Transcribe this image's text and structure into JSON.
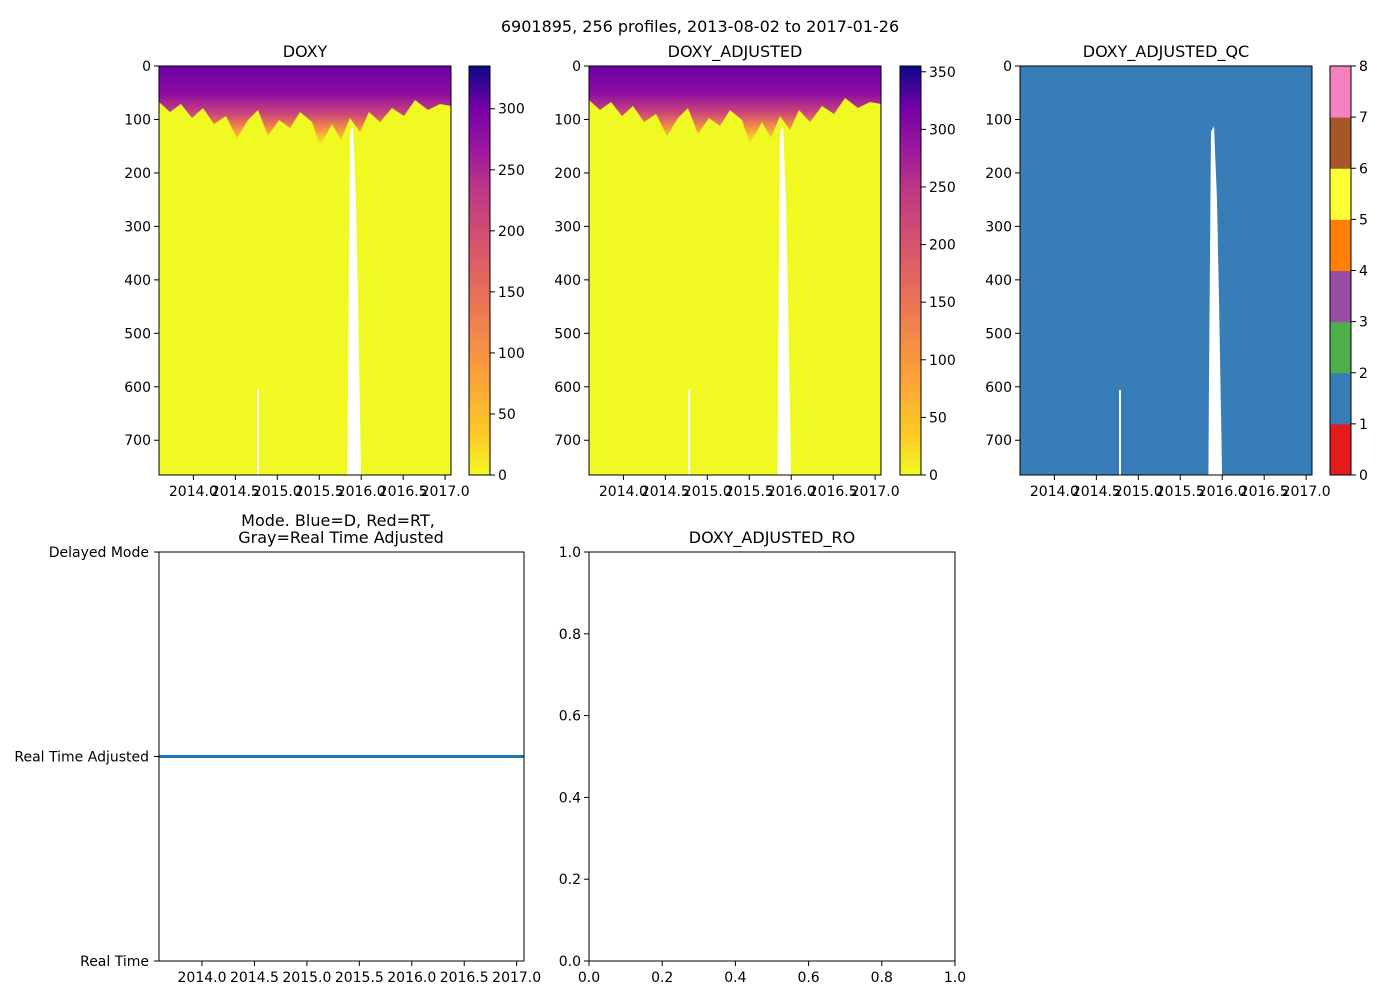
{
  "suptitle": "6901895, 256 profiles, 2013-08-02 to 2017-01-26",
  "colors": {
    "qc_blue": "#377eb8",
    "mode_line": "#1f77b4",
    "qc_palette": [
      "#e41a1c",
      "#377eb8",
      "#4daf4a",
      "#984ea3",
      "#ff7f00",
      "#ffff33",
      "#a65628",
      "#f781bf",
      "#999999"
    ]
  },
  "chart_data": [
    {
      "id": "doxy",
      "type": "heatmap",
      "title": "DOXY",
      "x_ticks": [
        "2014.0",
        "2014.5",
        "2015.0",
        "2015.5",
        "2016.0",
        "2016.5",
        "2017.0"
      ],
      "x_tick_values": [
        2014.0,
        2014.5,
        2015.0,
        2015.5,
        2016.0,
        2016.5,
        2017.0
      ],
      "xlim": [
        2013.59,
        2017.07
      ],
      "y_ticks": [
        "0",
        "100",
        "200",
        "300",
        "400",
        "500",
        "600",
        "700"
      ],
      "y_tick_values": [
        0,
        100,
        200,
        300,
        400,
        500,
        600,
        700
      ],
      "ylim": [
        765,
        0
      ],
      "colorbar": {
        "cmap": "plasma_r",
        "range": [
          0,
          335
        ],
        "ticks": [
          "0",
          "50",
          "100",
          "150",
          "200",
          "250",
          "300"
        ],
        "tick_values": [
          0,
          50,
          100,
          150,
          200,
          250,
          300
        ]
      },
      "notes": "Oxygen high (purple) in upper ~100 dbar, near-zero (yellow) below; profiles end ~715 dbar; data gap around 2016.0"
    },
    {
      "id": "doxy_adj",
      "type": "heatmap",
      "title": "DOXY_ADJUSTED",
      "x_ticks": [
        "2014.0",
        "2014.5",
        "2015.0",
        "2015.5",
        "2016.0",
        "2016.5",
        "2017.0"
      ],
      "x_tick_values": [
        2014.0,
        2014.5,
        2015.0,
        2015.5,
        2016.0,
        2016.5,
        2017.0
      ],
      "xlim": [
        2013.59,
        2017.07
      ],
      "y_ticks": [
        "0",
        "100",
        "200",
        "300",
        "400",
        "500",
        "600",
        "700"
      ],
      "y_tick_values": [
        0,
        100,
        200,
        300,
        400,
        500,
        600,
        700
      ],
      "ylim": [
        765,
        0
      ],
      "colorbar": {
        "cmap": "plasma_r",
        "range": [
          0,
          355
        ],
        "ticks": [
          "0",
          "50",
          "100",
          "150",
          "200",
          "250",
          "300",
          "350"
        ],
        "tick_values": [
          0,
          50,
          100,
          150,
          200,
          250,
          300,
          350
        ]
      }
    },
    {
      "id": "doxy_adj_qc",
      "type": "heatmap",
      "title": "DOXY_ADJUSTED_QC",
      "x_ticks": [
        "2014.0",
        "2014.5",
        "2015.0",
        "2015.5",
        "2016.0",
        "2016.5",
        "2017.0"
      ],
      "x_tick_values": [
        2014.0,
        2014.5,
        2015.0,
        2015.5,
        2016.0,
        2016.5,
        2017.0
      ],
      "xlim": [
        2013.59,
        2017.07
      ],
      "y_ticks": [
        "0",
        "100",
        "200",
        "300",
        "400",
        "500",
        "600",
        "700"
      ],
      "y_tick_values": [
        0,
        100,
        200,
        300,
        400,
        500,
        600,
        700
      ],
      "ylim": [
        765,
        0
      ],
      "colorbar": {
        "cmap": "qc",
        "range": [
          0,
          8
        ],
        "ticks": [
          "0",
          "1",
          "2",
          "3",
          "4",
          "5",
          "6",
          "7",
          "8"
        ],
        "tick_values": [
          0,
          1,
          2,
          3,
          4,
          5,
          6,
          7,
          8
        ]
      },
      "value": 1
    },
    {
      "id": "mode",
      "type": "line",
      "title": "Mode. Blue=D, Red=RT,",
      "title2": "Gray=Real Time Adjusted",
      "x_ticks": [
        "2014.0",
        "2014.5",
        "2015.0",
        "2015.5",
        "2016.0",
        "2016.5",
        "2017.0"
      ],
      "x_tick_values": [
        2014.0,
        2014.5,
        2015.0,
        2015.5,
        2016.0,
        2016.5,
        2017.0
      ],
      "xlim": [
        2013.59,
        2017.07
      ],
      "y_categories": [
        "Real Time",
        "Real Time Adjusted",
        "Delayed Mode"
      ],
      "y_tick_values": [
        0,
        1,
        2
      ],
      "ylim": [
        0,
        2
      ],
      "series": [
        {
          "name": "mode",
          "x": [
            2013.59,
            2017.07
          ],
          "y": [
            1,
            1
          ]
        }
      ]
    },
    {
      "id": "doxy_adj_ro",
      "type": "scatter",
      "title": "DOXY_ADJUSTED_RO",
      "x_ticks": [
        "0.0",
        "0.2",
        "0.4",
        "0.6",
        "0.8",
        "1.0"
      ],
      "x_tick_values": [
        0.0,
        0.2,
        0.4,
        0.6,
        0.8,
        1.0
      ],
      "y_ticks": [
        "0.0",
        "0.2",
        "0.4",
        "0.6",
        "0.8",
        "1.0"
      ],
      "y_tick_values": [
        0.0,
        0.2,
        0.4,
        0.6,
        0.8,
        1.0
      ],
      "xlim": [
        0,
        1
      ],
      "ylim": [
        0,
        1
      ],
      "series": []
    }
  ]
}
